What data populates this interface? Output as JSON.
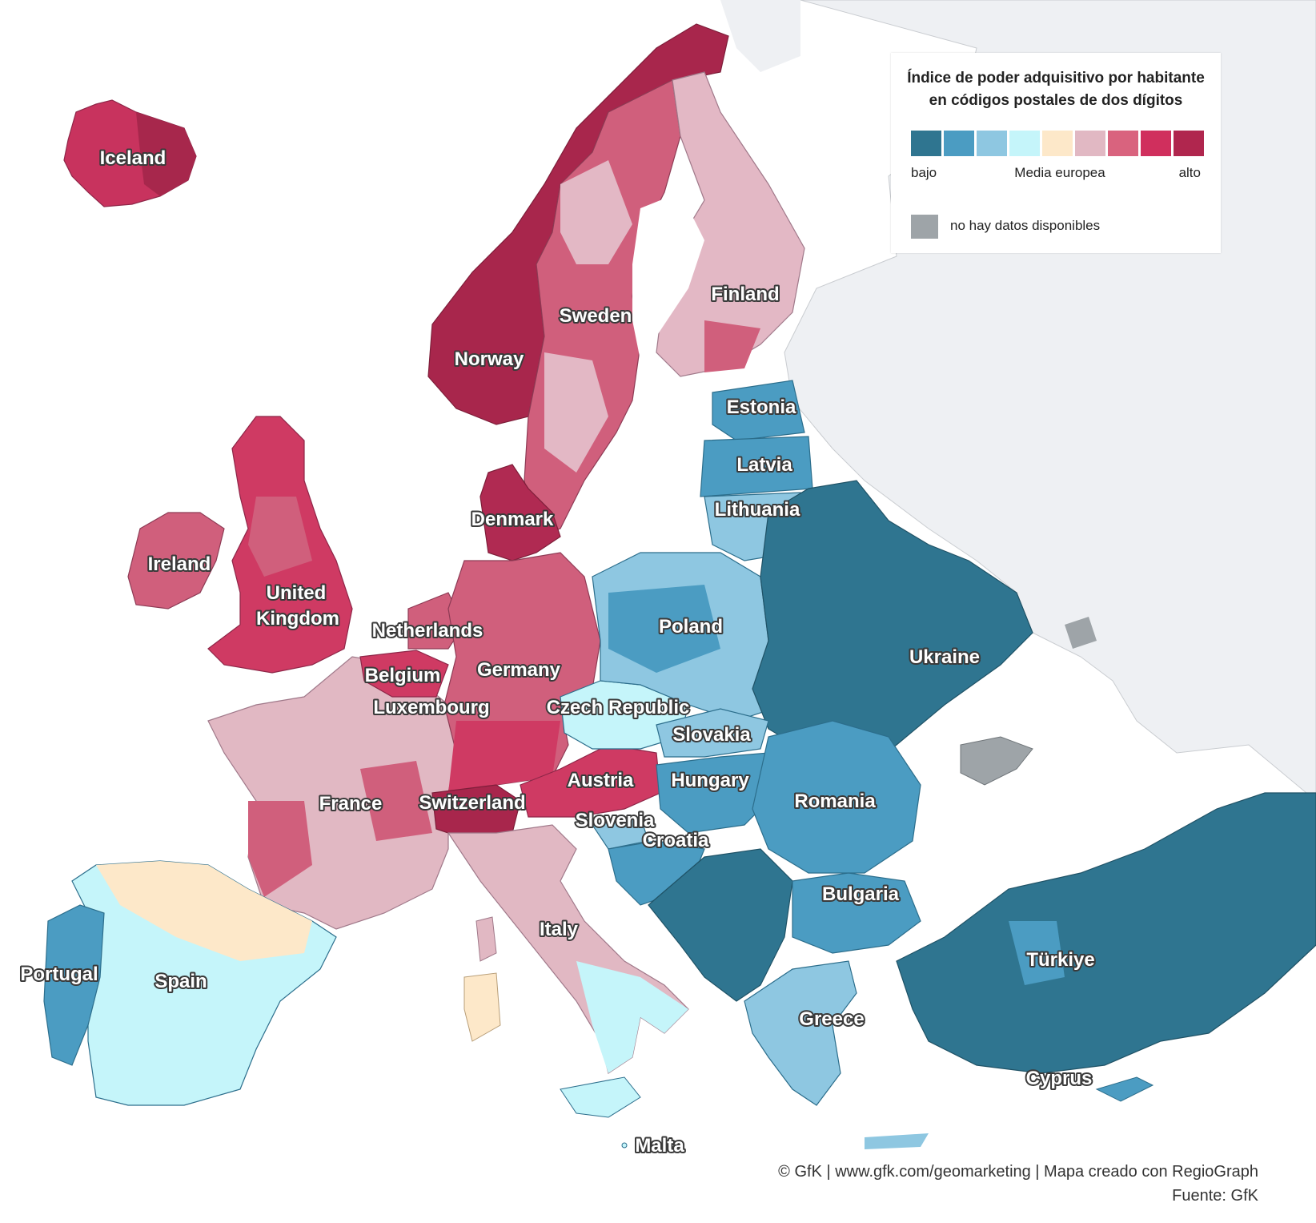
{
  "legend": {
    "title_line1": "Índice de poder adquisitivo por habitante",
    "title_line2": "en códigos postales de dos dígitos",
    "scale_colors": [
      "#2f7590",
      "#4b9cc2",
      "#8ec7e1",
      "#c5f5fa",
      "#fde8c9",
      "#e1b8c3",
      "#d9637e",
      "#d02f5d",
      "#b0264e"
    ],
    "low_label": "bajo",
    "mid_label": "Media europea",
    "high_label": "alto",
    "nodata_color": "#9ea4a8",
    "nodata_label": "no hay datos disponibles"
  },
  "countries": [
    {
      "key": "iceland",
      "label": "Iceland"
    },
    {
      "key": "norway",
      "label": "Norway"
    },
    {
      "key": "sweden",
      "label": "Sweden"
    },
    {
      "key": "finland",
      "label": "Finland"
    },
    {
      "key": "estonia",
      "label": "Estonia"
    },
    {
      "key": "latvia",
      "label": "Latvia"
    },
    {
      "key": "lithuania",
      "label": "Lithuania"
    },
    {
      "key": "denmark",
      "label": "Denmark"
    },
    {
      "key": "ireland",
      "label": "Ireland"
    },
    {
      "key": "uk1",
      "label": "United"
    },
    {
      "key": "uk2",
      "label": "Kingdom"
    },
    {
      "key": "netherlands",
      "label": "Netherlands"
    },
    {
      "key": "belgium",
      "label": "Belgium"
    },
    {
      "key": "germany",
      "label": "Germany"
    },
    {
      "key": "luxembourg",
      "label": "Luxembourg"
    },
    {
      "key": "czech",
      "label": "Czech Republic"
    },
    {
      "key": "poland",
      "label": "Poland"
    },
    {
      "key": "ukraine",
      "label": "Ukraine"
    },
    {
      "key": "slovakia",
      "label": "Slovakia"
    },
    {
      "key": "austria",
      "label": "Austria"
    },
    {
      "key": "hungary",
      "label": "Hungary"
    },
    {
      "key": "romania",
      "label": "Romania"
    },
    {
      "key": "france",
      "label": "France"
    },
    {
      "key": "switzerland",
      "label": "Switzerland"
    },
    {
      "key": "slovenia",
      "label": "Slovenia"
    },
    {
      "key": "croatia",
      "label": "Croatia"
    },
    {
      "key": "bulgaria",
      "label": "Bulgaria"
    },
    {
      "key": "italy",
      "label": "Italy"
    },
    {
      "key": "portugal",
      "label": "Portugal"
    },
    {
      "key": "spain",
      "label": "Spain"
    },
    {
      "key": "turkiye",
      "label": "Türkiye"
    },
    {
      "key": "greece",
      "label": "Greece"
    },
    {
      "key": "cyprus",
      "label": "Cyprus"
    },
    {
      "key": "malta",
      "label": "Malta"
    }
  ],
  "credit": {
    "line1": "© GfK | www.gfk.com/geomarketing | Mapa creado con RegioGraph",
    "line2": "Fuente: GfK"
  }
}
